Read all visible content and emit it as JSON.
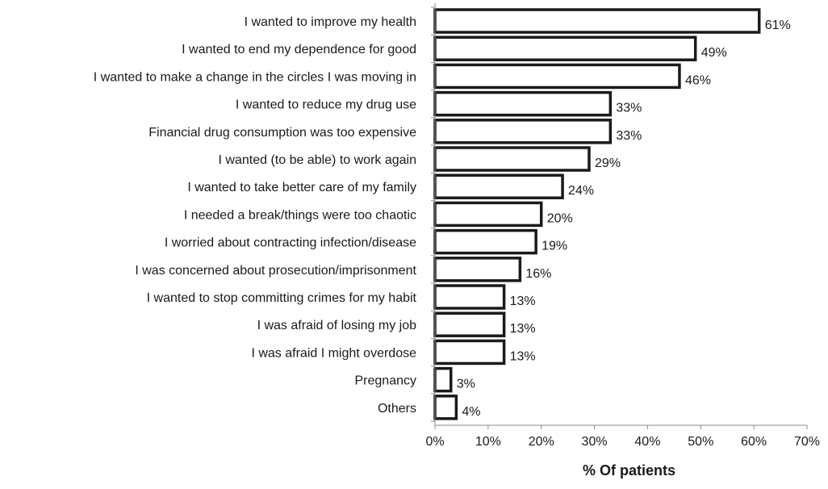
{
  "chart_data": {
    "type": "bar",
    "orientation": "horizontal",
    "categories": [
      "I wanted to improve my health",
      "I wanted to end my dependence for good",
      "I wanted to make a change in the circles I was moving in",
      "I wanted to reduce my drug use",
      "Financial drug consumption was too expensive",
      "I wanted (to be able) to work again",
      "I wanted to take better care of my family",
      "I needed a break/things were too chaotic",
      "I worried about contracting infection/disease",
      "I was concerned about prosecution/imprisonment",
      "I wanted to stop committing crimes for my habit",
      "I was afraid of losing my job",
      "I was afraid I might overdose",
      "Pregnancy",
      "Others"
    ],
    "values": [
      61,
      49,
      46,
      33,
      33,
      29,
      24,
      20,
      19,
      16,
      13,
      13,
      13,
      3,
      4
    ],
    "data_labels": [
      "61%",
      "49%",
      "46%",
      "33%",
      "33%",
      "29%",
      "24%",
      "20%",
      "19%",
      "16%",
      "13%",
      "13%",
      "13%",
      "3%",
      "4%"
    ],
    "xlim": [
      0,
      70
    ],
    "x_ticks": [
      0,
      10,
      20,
      30,
      40,
      50,
      60,
      70
    ],
    "x_tick_labels": [
      "0%",
      "10%",
      "20%",
      "30%",
      "40%",
      "50%",
      "60%",
      "70%"
    ],
    "xlabel": "% Of patients",
    "ylabel": "",
    "title": "",
    "grid": false,
    "legend": "none"
  }
}
